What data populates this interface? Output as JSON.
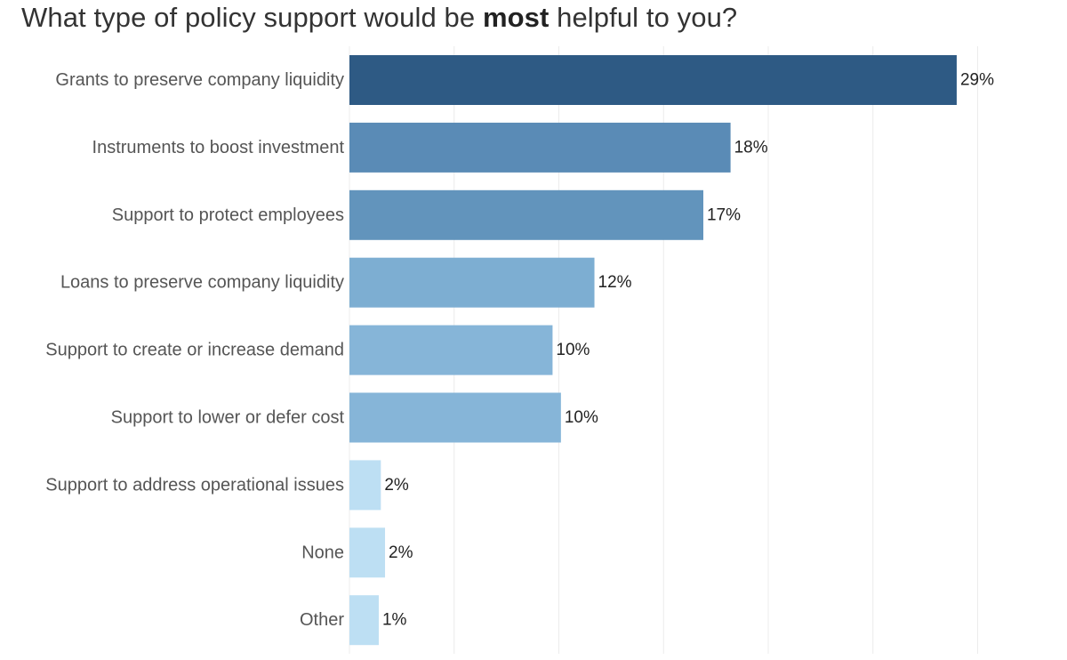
{
  "title": {
    "prefix": "What type of policy support would be ",
    "emphasis": "most",
    "suffix": " helpful to you?"
  },
  "chart_data": {
    "type": "bar",
    "orientation": "horizontal",
    "title": "What type of policy support would be most helpful to you?",
    "categories": [
      "Grants to preserve company liquidity",
      "Instruments to boost investment",
      "Support to protect employees",
      "Loans to preserve company liquidity",
      "Support to create or increase demand",
      "Support to lower or defer cost",
      "Support to address operational issues",
      "None",
      "Other"
    ],
    "values": [
      29,
      18,
      17,
      12,
      10,
      10,
      2,
      2,
      1
    ],
    "exact_values": [
      29,
      18.2,
      16.9,
      11.7,
      9.7,
      10.1,
      1.5,
      1.7,
      1.4
    ],
    "value_labels": [
      "29%",
      "18%",
      "17%",
      "12%",
      "10%",
      "10%",
      "2%",
      "2%",
      "1%"
    ],
    "bar_colors": [
      "#2e5a84",
      "#5a8bb6",
      "#6294bc",
      "#7daed2",
      "#86b5d8",
      "#86b5d8",
      "#bddff3",
      "#bddff3",
      "#bddff3"
    ],
    "xlim": [
      0,
      32
    ],
    "grid": true,
    "legend": "none",
    "xlabel": "",
    "ylabel": ""
  }
}
